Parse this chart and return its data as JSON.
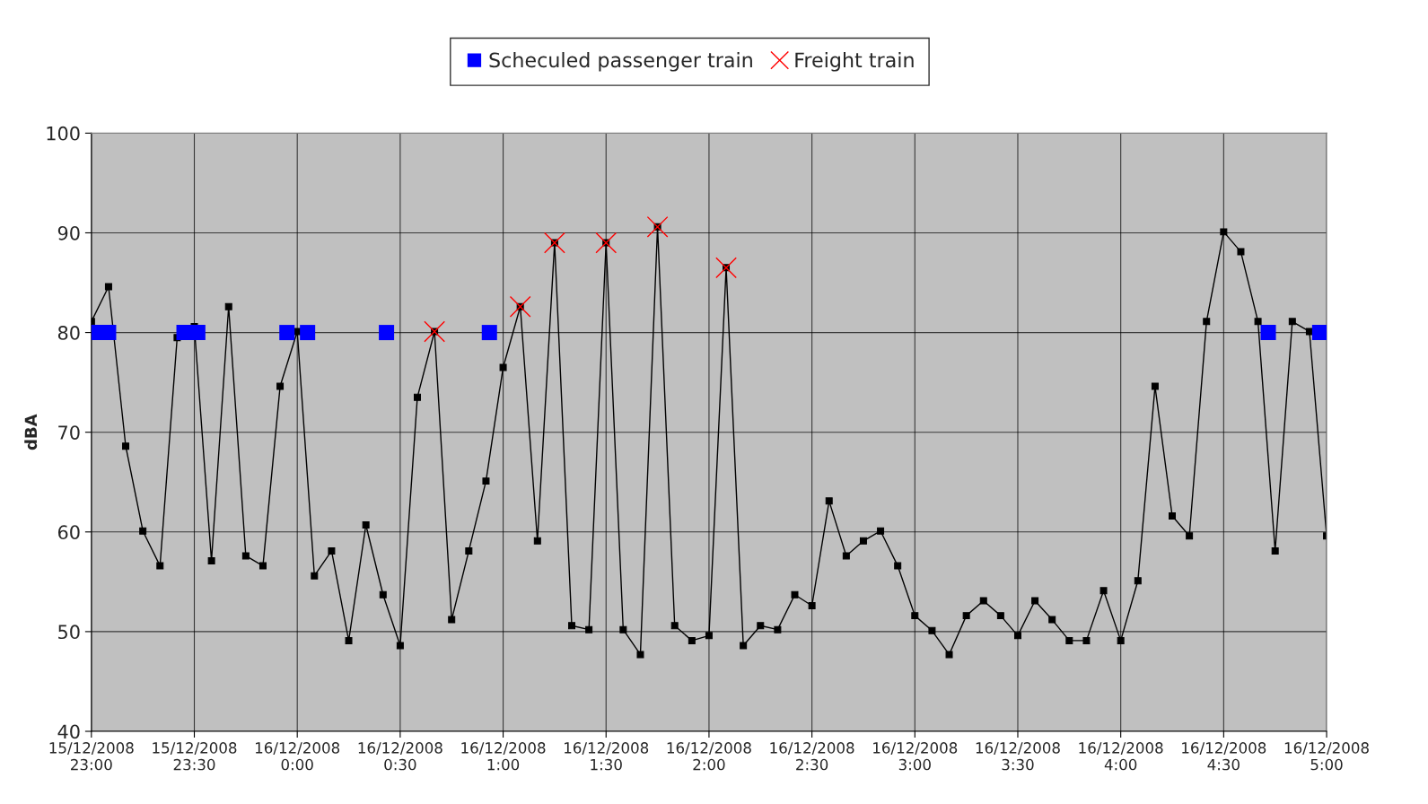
{
  "chart_data": {
    "type": "line",
    "ylabel": "dBA",
    "xlim": [
      "2008-12-15T23:00",
      "2008-12-16T05:00"
    ],
    "ylim": [
      40,
      100
    ],
    "yticks": [
      40,
      50,
      60,
      70,
      80,
      90,
      100
    ],
    "xticks": [
      {
        "value": "2008-12-15T23:00",
        "label": "15/12/2008\n23:00"
      },
      {
        "value": "2008-12-15T23:30",
        "label": "15/12/2008\n23:30"
      },
      {
        "value": "2008-12-16T00:00",
        "label": "16/12/2008\n0:00"
      },
      {
        "value": "2008-12-16T00:30",
        "label": "16/12/2008\n0:30"
      },
      {
        "value": "2008-12-16T01:00",
        "label": "16/12/2008\n1:00"
      },
      {
        "value": "2008-12-16T01:30",
        "label": "16/12/2008\n1:30"
      },
      {
        "value": "2008-12-16T02:00",
        "label": "16/12/2008\n2:00"
      },
      {
        "value": "2008-12-16T02:30",
        "label": "16/12/2008\n2:30"
      },
      {
        "value": "2008-12-16T03:00",
        "label": "16/12/2008\n3:00"
      },
      {
        "value": "2008-12-16T03:30",
        "label": "16/12/2008\n3:30"
      },
      {
        "value": "2008-12-16T04:00",
        "label": "16/12/2008\n4:00"
      },
      {
        "value": "2008-12-16T04:30",
        "label": "16/12/2008\n4:30"
      },
      {
        "value": "2008-12-16T05:00",
        "label": "16/12/2008\n5:00"
      }
    ],
    "grid": true,
    "legend": "top",
    "series": [
      {
        "color": "#000000",
        "marker": "square",
        "x": [
          "2008-12-15T23:00",
          "2008-12-15T23:05",
          "2008-12-15T23:10",
          "2008-12-15T23:15",
          "2008-12-15T23:20",
          "2008-12-15T23:25",
          "2008-12-15T23:30",
          "2008-12-15T23:35",
          "2008-12-15T23:40",
          "2008-12-15T23:45",
          "2008-12-15T23:50",
          "2008-12-15T23:55",
          "2008-12-16T00:00",
          "2008-12-16T00:05",
          "2008-12-16T00:10",
          "2008-12-16T00:15",
          "2008-12-16T00:20",
          "2008-12-16T00:25",
          "2008-12-16T00:30",
          "2008-12-16T00:35",
          "2008-12-16T00:40",
          "2008-12-16T00:45",
          "2008-12-16T00:50",
          "2008-12-16T00:55",
          "2008-12-16T01:00",
          "2008-12-16T01:05",
          "2008-12-16T01:10",
          "2008-12-16T01:15",
          "2008-12-16T01:20",
          "2008-12-16T01:25",
          "2008-12-16T01:30",
          "2008-12-16T01:35",
          "2008-12-16T01:40",
          "2008-12-16T01:45",
          "2008-12-16T01:50",
          "2008-12-16T01:55",
          "2008-12-16T02:00",
          "2008-12-16T02:05",
          "2008-12-16T02:10",
          "2008-12-16T02:15",
          "2008-12-16T02:20",
          "2008-12-16T02:25",
          "2008-12-16T02:30",
          "2008-12-16T02:35",
          "2008-12-16T02:40",
          "2008-12-16T02:45",
          "2008-12-16T02:50",
          "2008-12-16T02:55",
          "2008-12-16T03:00",
          "2008-12-16T03:05",
          "2008-12-16T03:10",
          "2008-12-16T03:15",
          "2008-12-16T03:20",
          "2008-12-16T03:25",
          "2008-12-16T03:30",
          "2008-12-16T03:35",
          "2008-12-16T03:40",
          "2008-12-16T03:45",
          "2008-12-16T03:50",
          "2008-12-16T03:55",
          "2008-12-16T04:00",
          "2008-12-16T04:05",
          "2008-12-16T04:10",
          "2008-12-16T04:15",
          "2008-12-16T04:20",
          "2008-12-16T04:25",
          "2008-12-16T04:30",
          "2008-12-16T04:35",
          "2008-12-16T04:40",
          "2008-12-16T04:45",
          "2008-12-16T04:50",
          "2008-12-16T04:55",
          "2008-12-16T05:00"
        ],
        "values": [
          81.1,
          84.6,
          68.6,
          60.1,
          56.6,
          79.5,
          80.6,
          57.1,
          82.6,
          57.6,
          56.6,
          74.6,
          80.1,
          55.6,
          58.1,
          49.1,
          60.7,
          53.7,
          48.6,
          73.5,
          80.1,
          51.2,
          58.1,
          65.1,
          76.5,
          82.6,
          59.1,
          89.0,
          50.6,
          50.2,
          89.0,
          50.2,
          47.7,
          90.6,
          50.6,
          49.1,
          49.6,
          86.5,
          48.6,
          50.6,
          50.2,
          53.7,
          52.6,
          63.1,
          57.6,
          59.1,
          60.1,
          56.6,
          51.6,
          50.1,
          47.7,
          51.6,
          53.1,
          51.6,
          49.6,
          53.1,
          51.2,
          49.1,
          49.1,
          54.1,
          49.1,
          55.1,
          74.6,
          61.6,
          59.6,
          81.1,
          90.1,
          88.1,
          81.1,
          58.1,
          81.1,
          80.1,
          59.6
        ]
      },
      {
        "type": "scatter",
        "name": "Scheculed passenger train",
        "color": "#0000ff",
        "marker": "square",
        "x": [
          "2008-12-15T23:01",
          "2008-12-15T23:05",
          "2008-12-15T23:27",
          "2008-12-15T23:31",
          "2008-12-15T23:57",
          "2008-12-16T00:03",
          "2008-12-16T00:26",
          "2008-12-16T00:56",
          "2008-12-16T04:43",
          "2008-12-16T04:58"
        ],
        "values": [
          80,
          80,
          80,
          80,
          80,
          80,
          80,
          80,
          80,
          80
        ]
      },
      {
        "type": "scatter",
        "name": "Freight train",
        "color": "#ff0000",
        "marker": "cross",
        "x": [
          "2008-12-16T00:40",
          "2008-12-16T01:05",
          "2008-12-16T01:15",
          "2008-12-16T01:30",
          "2008-12-16T01:45",
          "2008-12-16T02:05"
        ],
        "values": [
          80.1,
          82.6,
          89.0,
          89.0,
          90.6,
          86.5
        ]
      }
    ]
  }
}
